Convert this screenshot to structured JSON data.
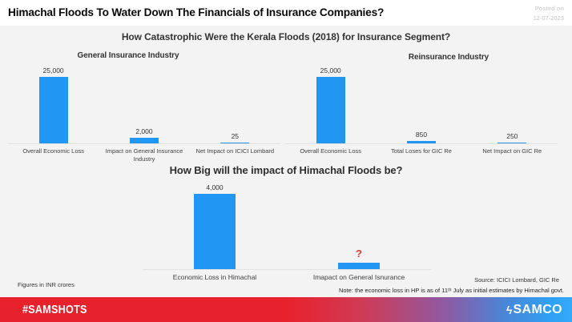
{
  "header": {
    "title": "Himachal Floods To Water Down The Financials of Insurance Companies?",
    "posted_on": "Posted on",
    "posted_date": "12-07-2023"
  },
  "sections": {
    "kerala_title": "How Catastrophic Were the Kerala Floods (2018) for Insurance Segment?"
  },
  "chart_data": [
    {
      "type": "bar",
      "section_title": "How Catastrophic Were the Kerala Floods (2018) for Insurance Segment?",
      "subtitle": "General Insurance Industry",
      "categories": [
        "Overall Economic Loss",
        "Impact on General Insurance Industry",
        "Net Impact on ICICI Lombard"
      ],
      "values": [
        25000,
        2000,
        25
      ],
      "value_labels": [
        "25,000",
        "2,000",
        "25"
      ],
      "ylim": [
        0,
        25000
      ],
      "unit": "INR crores",
      "bar_color": "#2196f3",
      "grid": false,
      "legend": false
    },
    {
      "type": "bar",
      "subtitle": "Reinsurance Industry",
      "categories": [
        "Overall Economic Loss",
        "Total Loses for GIC Re",
        "Net Impact on GIC Re"
      ],
      "values": [
        25000,
        850,
        250
      ],
      "value_labels": [
        "25,000",
        "850",
        "250"
      ],
      "ylim": [
        0,
        25000
      ],
      "unit": "INR crores",
      "bar_color": "#2196f3",
      "grid": false,
      "legend": false
    },
    {
      "type": "bar",
      "section_title": "How Big will the impact of Himachal Floods be?",
      "categories": [
        "Economic Loss in Himachal",
        "Imapact on General Isnurance"
      ],
      "values": [
        4000,
        null
      ],
      "value_labels": [
        "4,000",
        "?"
      ],
      "ylim": [
        0,
        4000
      ],
      "unit": "INR crores",
      "bar_color": "#2196f3",
      "unknown_color": "#e0392f",
      "grid": false,
      "legend": false
    }
  ],
  "footnotes": {
    "figures": "Figures in INR crores",
    "source": "Source: ICICI Lombard, GIC Re",
    "note": "Note: the economic loss in HP is as of 11ᵗʰ July as initial estimates by Himachal govt."
  },
  "footer": {
    "hashtag": "#SAMSHOTS",
    "brand": "SAMCO",
    "brand_icon": "lightning-bolt-icon",
    "brand_icon_glyph": "ϟ",
    "gradient_left": "#e8222c",
    "gradient_right": "#37a8f8"
  },
  "colors": {
    "bar_blue": "#2196f3",
    "question_mark_red": "#e0392f",
    "panel_background": "#f3f3f3",
    "header_background": "#ffffff"
  }
}
